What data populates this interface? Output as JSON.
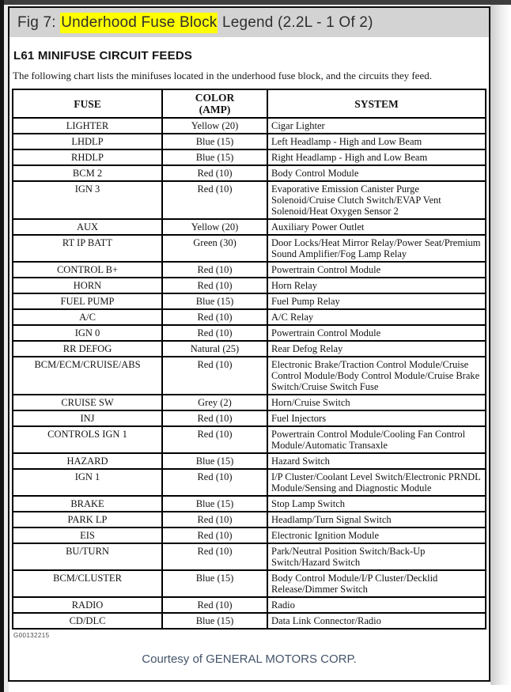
{
  "colors": {
    "highlight": "#ffff00",
    "header_bar_bg": "#d3d3d3",
    "top_strip": "#3d3d3d",
    "courtesy_text": "#44546a"
  },
  "page": {
    "figure_title_prefix": "Fig 7: ",
    "figure_title_highlight": "Underhood Fuse Block",
    "figure_title_suffix": " Legend (2.2L - 1 Of 2)",
    "section_title": "L61 MINIFUSE CIRCUIT FEEDS",
    "description": "The following chart lists the minifuses located in the underhood fuse block, and the circuits they feed.",
    "figure_code": "G00132215",
    "courtesy": "Courtesy of GENERAL MOTORS CORP."
  },
  "table": {
    "columns": [
      {
        "label": "FUSE"
      },
      {
        "label": "COLOR",
        "label2": "(AMP)"
      },
      {
        "label": "SYSTEM"
      }
    ],
    "rows": [
      {
        "fuse": "LIGHTER",
        "color": "Yellow (20)",
        "system": "Cigar Lighter"
      },
      {
        "fuse": "LHDLP",
        "color": "Blue (15)",
        "system": "Left Headlamp - High and Low Beam"
      },
      {
        "fuse": "RHDLP",
        "color": "Blue (15)",
        "system": "Right Headlamp - High and Low Beam"
      },
      {
        "fuse": "BCM 2",
        "color": "Red (10)",
        "system": "Body Control Module"
      },
      {
        "fuse": "IGN 3",
        "color": "Red (10)",
        "system": "Evaporative Emission Canister Purge Solenoid/Cruise Clutch Switch/EVAP Vent Solenoid/Heat Oxygen Sensor 2"
      },
      {
        "fuse": "AUX",
        "color": "Yellow (20)",
        "system": "Auxiliary Power Outlet"
      },
      {
        "fuse": "RT IP BATT",
        "color": "Green (30)",
        "system": "Door Locks/Heat Mirror Relay/Power Seat/Premium Sound Amplifier/Fog Lamp Relay"
      },
      {
        "fuse": "CONTROL B+",
        "color": "Red (10)",
        "system": "Powertrain Control Module"
      },
      {
        "fuse": "HORN",
        "color": "Red (10)",
        "system": "Horn Relay"
      },
      {
        "fuse": "FUEL PUMP",
        "color": "Blue (15)",
        "system": "Fuel Pump Relay"
      },
      {
        "fuse": "A/C",
        "color": "Red (10)",
        "system": "A/C Relay"
      },
      {
        "fuse": "IGN 0",
        "color": "Red (10)",
        "system": "Powertrain Control Module"
      },
      {
        "fuse": "RR DEFOG",
        "color": "Natural (25)",
        "system": "Rear Defog Relay"
      },
      {
        "fuse": "BCM/ECM/CRUISE/ABS",
        "color": "Red (10)",
        "system": "Electronic Brake/Traction Control Module/Cruise Control Module/Body Control Module/Cruise Brake Switch/Cruise Switch Fuse"
      },
      {
        "fuse": "CRUISE SW",
        "color": "Grey (2)",
        "system": "Horn/Cruise Switch"
      },
      {
        "fuse": "INJ",
        "color": "Red (10)",
        "system": "Fuel Injectors"
      },
      {
        "fuse": "CONTROLS IGN 1",
        "color": "Red (10)",
        "system": "Powertrain Control Module/Cooling Fan Control Module/Automatic Transaxle"
      },
      {
        "fuse": "HAZARD",
        "color": "Blue (15)",
        "system": "Hazard Switch"
      },
      {
        "fuse": "IGN 1",
        "color": "Red (10)",
        "system": "I/P Cluster/Coolant Level Switch/Electronic PRNDL Module/Sensing and Diagnostic Module"
      },
      {
        "fuse": "BRAKE",
        "color": "Blue (15)",
        "system": "Stop Lamp Switch"
      },
      {
        "fuse": "PARK LP",
        "color": "Red (10)",
        "system": "Headlamp/Turn Signal Switch"
      },
      {
        "fuse": "EIS",
        "color": "Red (10)",
        "system": "Electronic Ignition Module"
      },
      {
        "fuse": "BU/TURN",
        "color": "Red (10)",
        "system": "Park/Neutral Position Switch/Back-Up Switch/Hazard Switch"
      },
      {
        "fuse": "BCM/CLUSTER",
        "color": "Blue (15)",
        "system": "Body Control Module/I/P Cluster/Decklid Release/Dimmer Switch"
      },
      {
        "fuse": "RADIO",
        "color": "Red (10)",
        "system": "Radio"
      },
      {
        "fuse": "CD/DLC",
        "color": "Blue (15)",
        "system": "Data Link Connector/Radio"
      }
    ]
  }
}
